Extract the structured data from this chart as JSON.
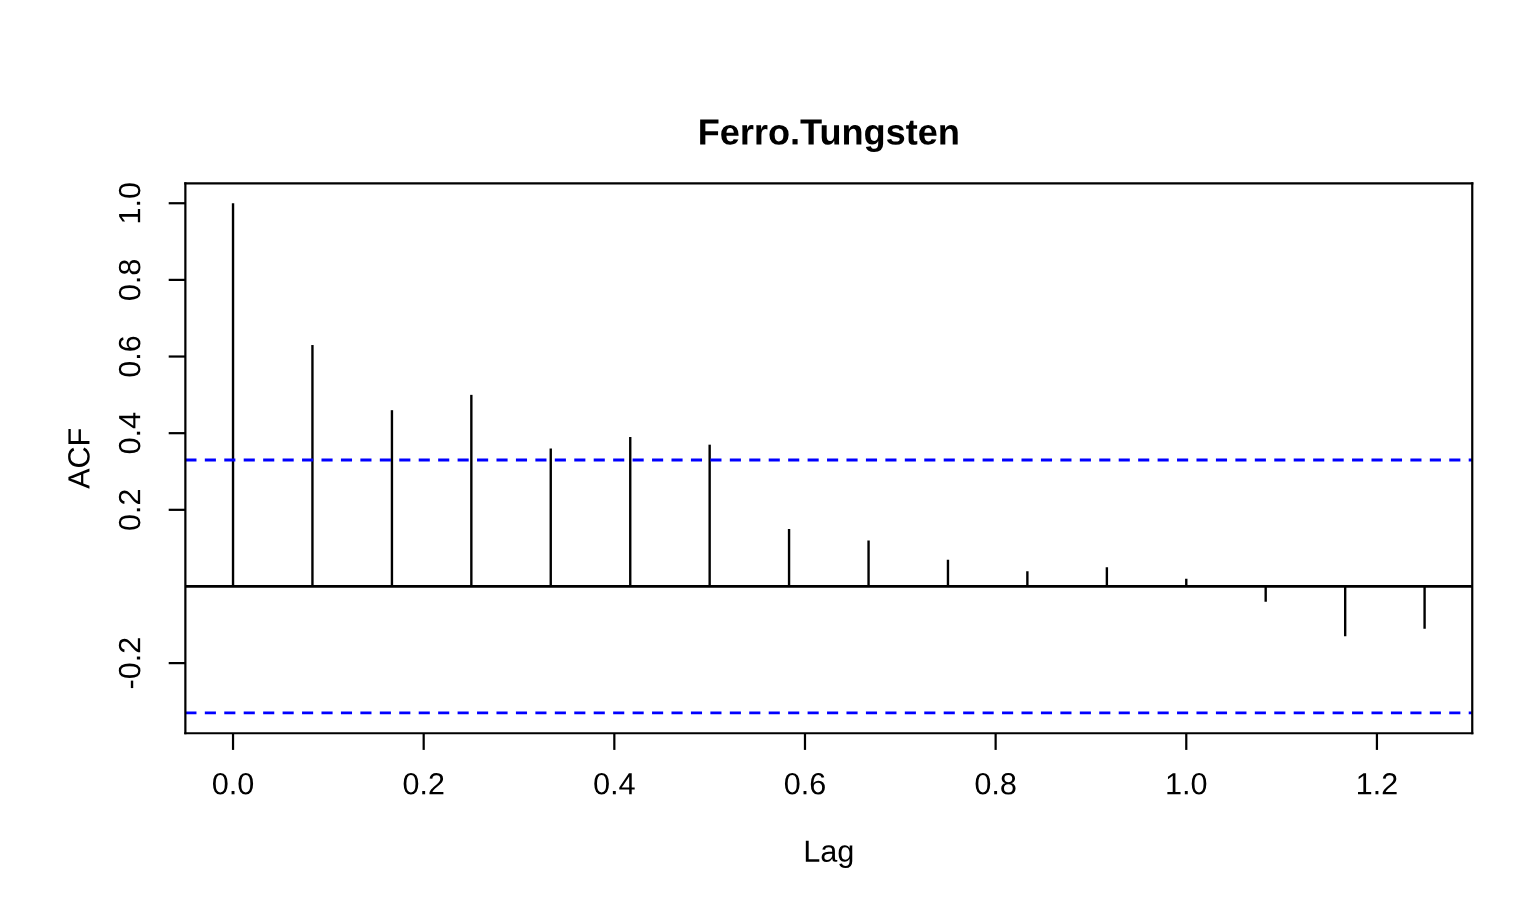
{
  "chart_data": {
    "type": "bar",
    "title": "Ferro.Tungsten",
    "xlabel": "Lag",
    "ylabel": "ACF",
    "x": [
      0,
      0.0833,
      0.1667,
      0.25,
      0.3333,
      0.4167,
      0.5,
      0.5833,
      0.6667,
      0.75,
      0.8333,
      0.9167,
      1.0,
      1.0833,
      1.1667,
      1.25
    ],
    "values": [
      1.0,
      0.63,
      0.46,
      0.5,
      0.36,
      0.39,
      0.37,
      0.15,
      0.12,
      0.07,
      0.04,
      0.05,
      0.02,
      -0.04,
      -0.13,
      -0.11
    ],
    "color": "#000000",
    "xlim": [
      -0.05,
      1.3
    ],
    "xticks": [
      {
        "value": 0,
        "label": "0.0"
      },
      0.2,
      0.4,
      0.6,
      0.8,
      {
        "value": 1,
        "label": "1.0"
      },
      1.2
    ],
    "ylim": [
      -0.383,
      1.052
    ],
    "yticks": [
      -0.2,
      0.2,
      0.4,
      0.6,
      0.8,
      {
        "value": 1,
        "label": "1.0"
      }
    ],
    "ref_lines": [
      {
        "axis": "y",
        "value": 0,
        "color": "#000000",
        "line_style": "solid"
      },
      {
        "axis": "y",
        "value": 0.33,
        "color": "#0000ff",
        "line_style": "dashed"
      },
      {
        "axis": "y",
        "value": -0.33,
        "color": "#0000ff",
        "line_style": "dashed"
      }
    ],
    "grid": false,
    "legend": false
  }
}
